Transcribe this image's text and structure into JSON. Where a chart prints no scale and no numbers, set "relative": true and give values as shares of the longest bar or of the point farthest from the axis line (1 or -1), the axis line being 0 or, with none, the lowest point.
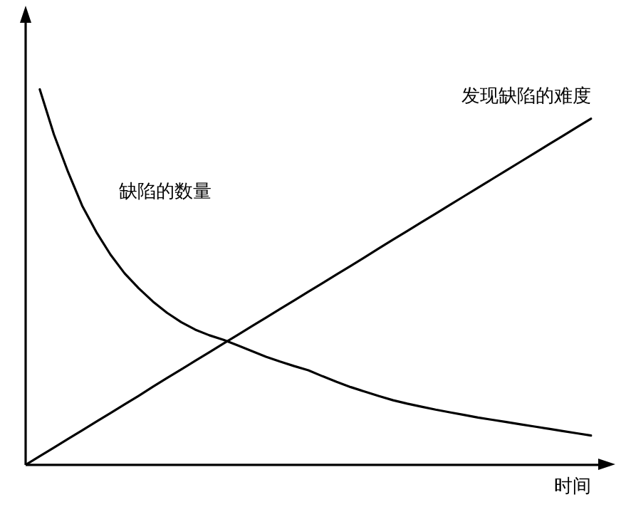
{
  "chart_data": {
    "type": "line",
    "relative": true,
    "xlabel": "时间",
    "marker": "none",
    "line_style": "solid",
    "legend": false,
    "grid": false,
    "tick_labels": false,
    "categories": [
      null,
      null,
      null,
      null,
      null,
      null,
      null,
      null,
      null,
      null,
      null,
      null,
      null,
      null,
      null,
      null,
      null,
      null,
      null,
      null,
      null,
      null,
      null,
      null,
      null,
      null,
      null,
      null,
      null,
      null,
      null,
      null,
      null,
      null,
      null,
      null,
      null,
      null,
      null,
      null,
      null
    ],
    "series": [
      {
        "name": "缺陷的数量",
        "color": "#000000",
        "values": [
          null,
          1.0,
          0.88,
          0.78,
          0.69,
          0.62,
          0.56,
          0.51,
          0.47,
          0.435,
          0.405,
          0.38,
          0.36,
          0.345,
          0.333,
          0.318,
          0.303,
          0.288,
          0.275,
          0.263,
          0.252,
          0.236,
          0.221,
          0.207,
          0.195,
          0.183,
          0.172,
          0.163,
          0.155,
          0.147,
          0.14,
          0.133,
          0.126,
          0.12,
          0.114,
          0.108,
          0.102,
          0.096,
          0.09,
          0.084,
          0.078
        ]
      },
      {
        "name": "发现缺陷的难度",
        "color": "#000000",
        "values": [
          0,
          0.023,
          0.046,
          0.069,
          0.092,
          0.115,
          0.138,
          0.161,
          0.184,
          0.208,
          0.231,
          0.254,
          0.277,
          0.3,
          0.323,
          0.346,
          0.369,
          0.392,
          0.415,
          0.438,
          0.461,
          0.484,
          0.507,
          0.53,
          0.553,
          0.577,
          0.6,
          0.623,
          0.646,
          0.669,
          0.692,
          0.715,
          0.738,
          0.761,
          0.784,
          0.807,
          0.83,
          0.853,
          0.876,
          0.899,
          0.922
        ]
      }
    ]
  }
}
